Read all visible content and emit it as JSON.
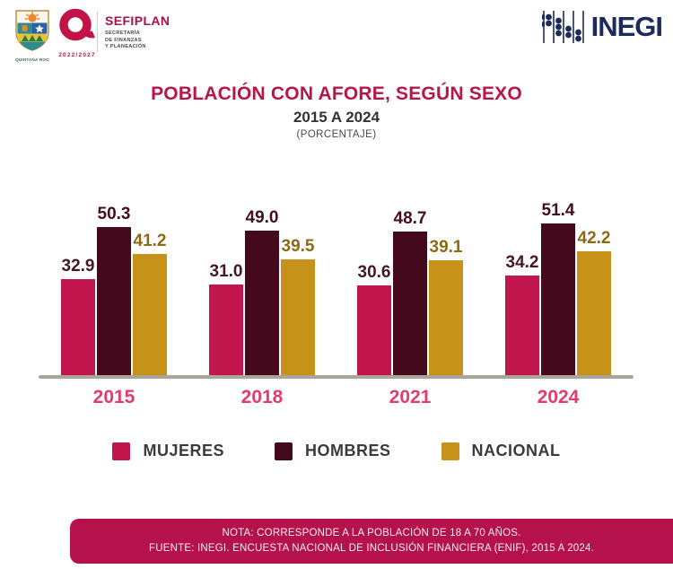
{
  "header": {
    "qroo_caption": "QUINTANA ROO",
    "q_years": "2022/2027",
    "sefiplan_name": "SEFIPLAN",
    "sefiplan_sub1": "SECRETARÍA",
    "sefiplan_sub2": "DE FINANZAS",
    "sefiplan_sub3": "Y PLANEACIÓN",
    "inegi_wordmark": "INEGI"
  },
  "title": {
    "main": "POBLACIÓN CON AFORE, SEGÚN SEXO",
    "range": "2015 A 2024",
    "unit": "(PORCENTAJE)"
  },
  "chart_data": {
    "type": "bar",
    "title": "POBLACIÓN CON AFORE, SEGÚN SEXO",
    "subtitle": "2015 A 2024 (PORCENTAJE)",
    "categories": [
      "2015",
      "2018",
      "2021",
      "2024"
    ],
    "series": [
      {
        "name": "MUJERES",
        "color": "#C2164E",
        "label_color": "#451728",
        "values": [
          32.9,
          31.0,
          30.6,
          34.2
        ]
      },
      {
        "name": "HOMBRES",
        "color": "#45091D",
        "label_color": "#430E22",
        "values": [
          50.3,
          49.0,
          48.7,
          51.4
        ]
      },
      {
        "name": "NACIONAL",
        "color": "#C69219",
        "label_color": "#8C6A14",
        "values": [
          41.2,
          39.5,
          39.1,
          42.2
        ]
      }
    ],
    "ylim": [
      0,
      55
    ],
    "grid": false,
    "legend_position": "bottom",
    "value_labels": true,
    "xlabel": "",
    "ylabel": ""
  },
  "colors": {
    "title": "#B81549",
    "year_label": "#E23C6E",
    "axis_line": "#ABA49B",
    "legend_text": "#3E3A3B",
    "footer_bg": "#B5114A",
    "inegi_navy": "#1C2B5A",
    "sefiplan_magenta": "#A8124A"
  },
  "footer": {
    "note": "NOTA: CORRESPONDE A LA POBLACIÓN DE 18 A 70 AÑOS.",
    "source": "FUENTE: INEGI. ENCUESTA NACIONAL DE INCLUSIÓN FINANCIERA (ENIF), 2015 A 2024."
  }
}
